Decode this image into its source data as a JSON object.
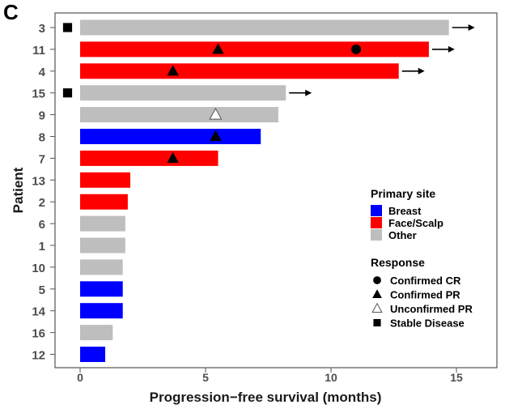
{
  "panel_label": "C",
  "chart_data": {
    "type": "bar",
    "orientation": "horizontal",
    "title": "",
    "xlabel": "Progression−free survival (months)",
    "ylabel": "Patient",
    "xlim": [
      -1,
      16.5
    ],
    "x_ticks": [
      0,
      5,
      10,
      15
    ],
    "grid": false,
    "legend_position": "right",
    "colors": {
      "Breast": "#0000FF",
      "Face/Scalp": "#FF0000",
      "Other": "#BEBEBE"
    },
    "patients": [
      {
        "patient": "3",
        "pfs": 14.7,
        "site": "Other",
        "ongoing": true,
        "markers": [
          {
            "type": "Stable Disease",
            "x": -0.5
          }
        ]
      },
      {
        "patient": "11",
        "pfs": 13.9,
        "site": "Face/Scalp",
        "ongoing": true,
        "markers": [
          {
            "type": "Confirmed PR",
            "x": 5.5
          },
          {
            "type": "Confirmed CR",
            "x": 11.0
          }
        ]
      },
      {
        "patient": "4",
        "pfs": 12.7,
        "site": "Face/Scalp",
        "ongoing": true,
        "markers": [
          {
            "type": "Confirmed PR",
            "x": 3.7
          }
        ]
      },
      {
        "patient": "15",
        "pfs": 8.2,
        "site": "Other",
        "ongoing": true,
        "markers": [
          {
            "type": "Stable Disease",
            "x": -0.5
          }
        ]
      },
      {
        "patient": "9",
        "pfs": 7.9,
        "site": "Other",
        "ongoing": false,
        "markers": [
          {
            "type": "Unconfirmed PR",
            "x": 5.4
          }
        ]
      },
      {
        "patient": "8",
        "pfs": 7.2,
        "site": "Breast",
        "ongoing": false,
        "markers": [
          {
            "type": "Confirmed PR",
            "x": 5.4
          }
        ]
      },
      {
        "patient": "7",
        "pfs": 5.5,
        "site": "Face/Scalp",
        "ongoing": false,
        "markers": [
          {
            "type": "Confirmed PR",
            "x": 3.7
          }
        ]
      },
      {
        "patient": "13",
        "pfs": 2.0,
        "site": "Face/Scalp",
        "ongoing": false,
        "markers": []
      },
      {
        "patient": "2",
        "pfs": 1.9,
        "site": "Face/Scalp",
        "ongoing": false,
        "markers": []
      },
      {
        "patient": "6",
        "pfs": 1.8,
        "site": "Other",
        "ongoing": false,
        "markers": []
      },
      {
        "patient": "1",
        "pfs": 1.8,
        "site": "Other",
        "ongoing": false,
        "markers": []
      },
      {
        "patient": "10",
        "pfs": 1.7,
        "site": "Other",
        "ongoing": false,
        "markers": []
      },
      {
        "patient": "5",
        "pfs": 1.7,
        "site": "Breast",
        "ongoing": false,
        "markers": []
      },
      {
        "patient": "14",
        "pfs": 1.7,
        "site": "Breast",
        "ongoing": false,
        "markers": []
      },
      {
        "patient": "16",
        "pfs": 1.3,
        "site": "Other",
        "ongoing": false,
        "markers": []
      },
      {
        "patient": "12",
        "pfs": 1.0,
        "site": "Breast",
        "ongoing": false,
        "markers": []
      }
    ],
    "legend": {
      "site_title": "Primary site",
      "sites": [
        "Breast",
        "Face/Scalp",
        "Other"
      ],
      "response_title": "Response",
      "responses": [
        {
          "label": "Confirmed CR",
          "shape": "circle-filled"
        },
        {
          "label": "Confirmed PR",
          "shape": "triangle-filled"
        },
        {
          "label": "Unconfirmed PR",
          "shape": "triangle-open"
        },
        {
          "label": "Stable Disease",
          "shape": "square-filled"
        }
      ]
    }
  }
}
